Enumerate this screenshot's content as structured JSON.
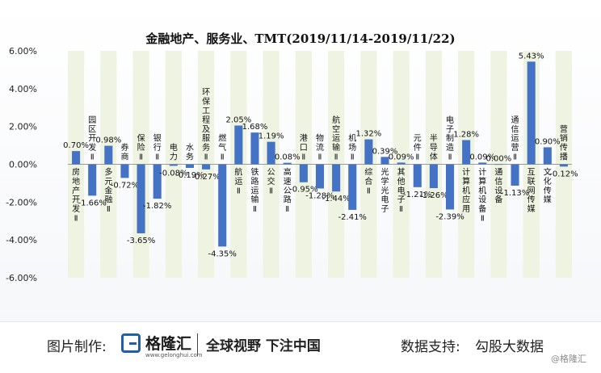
{
  "chart_data": {
    "type": "bar",
    "title": "金融地产、服务业、TMT(2019/11/14-2019/11/22)",
    "ylim": [
      -6,
      6
    ],
    "yticks": [
      "6.00%",
      "4.00%",
      "2.00%",
      "0.00%",
      "-2.00%",
      "-4.00%",
      "-6.00%"
    ],
    "categories": [
      "房地产开发Ⅱ",
      "园区开发Ⅱ",
      "多元金融Ⅱ",
      "券商",
      "保险Ⅱ",
      "银行Ⅱ",
      "电力",
      "水务",
      "环保工程及服务Ⅱ",
      "燃气Ⅱ",
      "航运Ⅱ",
      "铁路运输Ⅱ",
      "公交Ⅱ",
      "高速公路Ⅱ",
      "港口Ⅱ",
      "物流Ⅱ",
      "航空运输Ⅱ",
      "机场Ⅱ",
      "综合Ⅱ",
      "光学光电子",
      "其他电子Ⅱ",
      "元件Ⅱ",
      "半导体",
      "电子制造Ⅱ",
      "计算机应用",
      "计算机设备Ⅱ",
      "通信设备",
      "通信运营Ⅱ",
      "互联网传媒",
      "文化传媒",
      "营销传播"
    ],
    "values": [
      0.7,
      -1.66,
      0.98,
      -0.72,
      -3.65,
      -1.82,
      -0.08,
      -0.19,
      -0.27,
      -4.35,
      2.05,
      1.68,
      1.19,
      0.08,
      -0.95,
      -1.28,
      -1.44,
      -2.41,
      1.32,
      0.39,
      0.09,
      -1.21,
      -1.26,
      -2.39,
      1.28,
      0.09,
      0.0,
      -1.13,
      5.43,
      0.9,
      -0.12
    ],
    "data_labels": [
      "0.70%",
      "-1.66%",
      "0.98%",
      "-0.72%",
      "-3.65%",
      "-1.82%",
      "-0.08%",
      "-0.19%",
      "-0.27%",
      "-4.35%",
      "2.05%",
      "1.68%",
      "1.19%",
      "0.08%",
      "-0.95%",
      "-1.28%",
      "-1.44%",
      "-2.41%",
      "1.32%",
      "0.39%",
      "0.09%",
      "-1.21%",
      "-1.26%",
      "-2.39%",
      "1.28%",
      "0.09%",
      "0.00%",
      "-1.13%",
      "5.43%",
      "0.90%",
      "-0.12%"
    ],
    "grid": false,
    "bar_color": "#4472c4"
  },
  "footer": {
    "made_label": "图片制作:",
    "brand_name": "格隆汇",
    "brand_url": "www.gelonghui.com",
    "slogan": "全球视野 下注中国",
    "support_label": "数据支持:",
    "support_name": "勾股大数据",
    "watermark": "@格隆汇"
  }
}
